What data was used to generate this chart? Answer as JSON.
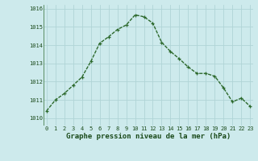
{
  "x": [
    0,
    1,
    2,
    3,
    4,
    5,
    6,
    7,
    8,
    9,
    10,
    11,
    12,
    13,
    14,
    15,
    16,
    17,
    18,
    19,
    20,
    21,
    22,
    23
  ],
  "y": [
    1010.4,
    1011.0,
    1011.35,
    1011.8,
    1012.25,
    1013.1,
    1014.1,
    1014.45,
    1014.85,
    1015.1,
    1015.65,
    1015.55,
    1015.2,
    1014.15,
    1013.65,
    1013.25,
    1012.8,
    1012.45,
    1012.45,
    1012.3,
    1011.65,
    1010.9,
    1011.1,
    1010.65
  ],
  "line_color": "#2d6a2d",
  "marker": "+",
  "bg_color": "#cdeaec",
  "grid_color": "#b0d4d6",
  "xlabel": "Graphe pression niveau de la mer (hPa)",
  "xlabel_color": "#1a4a1a",
  "yticks": [
    1010,
    1011,
    1012,
    1013,
    1014,
    1015,
    1016
  ],
  "xticks": [
    0,
    1,
    2,
    3,
    4,
    5,
    6,
    7,
    8,
    9,
    10,
    11,
    12,
    13,
    14,
    15,
    16,
    17,
    18,
    19,
    20,
    21,
    22,
    23
  ],
  "ylim": [
    1009.6,
    1016.2
  ],
  "xlim": [
    -0.3,
    23.3
  ],
  "tick_color": "#1a4a1a",
  "tick_fontsize": 5.0,
  "xlabel_fontsize": 6.5,
  "linewidth": 1.0,
  "markersize": 3.5,
  "markeredgewidth": 0.9
}
